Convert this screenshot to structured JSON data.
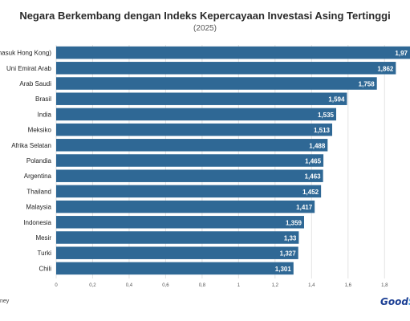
{
  "chart_data": {
    "type": "bar",
    "orientation": "horizontal",
    "title": "Negara Berkembang dengan Indeks Kepercayaan Investasi Asing Tertinggi",
    "subtitle": "(2025)",
    "categories": [
      "China (termasuk Hong Kong)",
      "Uni Emirat Arab",
      "Arab Saudi",
      "Brasil",
      "India",
      "Meksiko",
      "Afrika Selatan",
      "Polandia",
      "Argentina",
      "Thailand",
      "Malaysia",
      "Indonesia",
      "Mesir",
      "Turki",
      "Chili"
    ],
    "category_labels_visible": [
      "masuk Hong Kong)",
      "Uni Emirat Arab",
      "Arab Saudi",
      "Brasil",
      "India",
      "Meksiko",
      "Afrika Selatan",
      "Polandia",
      "Argentina",
      "Thailand",
      "Malaysia",
      "Indonesia",
      "Mesir",
      "Turki",
      "Chili"
    ],
    "values": [
      1.97,
      1.862,
      1.758,
      1.594,
      1.535,
      1.513,
      1.488,
      1.465,
      1.463,
      1.452,
      1.417,
      1.359,
      1.33,
      1.327,
      1.301
    ],
    "value_labels": [
      "1,97",
      "1,862",
      "1,758",
      "1,594",
      "1,535",
      "1,513",
      "1,488",
      "1,465",
      "1,463",
      "1,452",
      "1,417",
      "1,359",
      "1,33",
      "1,327",
      "1,301"
    ],
    "xlim": [
      0,
      1.9
    ],
    "xticks": [
      0,
      0.2,
      0.4,
      0.6,
      0.8,
      1,
      1.2,
      1.4,
      1.6,
      1.8
    ],
    "xtick_labels": [
      "0",
      "0,2",
      "0,4",
      "0,6",
      "0,8",
      "1",
      "1,2",
      "1,4",
      "1,6",
      "1,8"
    ],
    "bar_color": "#2f6895",
    "grid": true
  },
  "footer": {
    "source_fragment": "ney",
    "logo_text": "Good",
    "logo_accent": "S"
  }
}
